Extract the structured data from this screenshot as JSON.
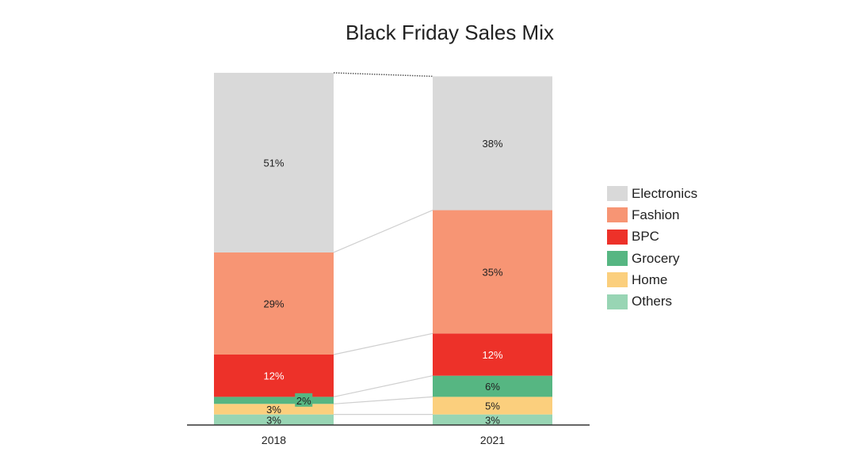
{
  "chart_data": {
    "type": "bar",
    "stacked": true,
    "normalized": true,
    "title": "Black Friday Sales Mix",
    "categories": [
      "2018",
      "2021"
    ],
    "series": [
      {
        "name": "Others",
        "values": [
          3,
          3
        ],
        "color": "#98d5b4"
      },
      {
        "name": "Home",
        "values": [
          3,
          5
        ],
        "color": "#fbcf7d"
      },
      {
        "name": "Grocery",
        "values": [
          2,
          6
        ],
        "color": "#56b682"
      },
      {
        "name": "BPC",
        "values": [
          12,
          12
        ],
        "color": "#ed3129"
      },
      {
        "name": "Fashion",
        "values": [
          29,
          35
        ],
        "color": "#f79574"
      },
      {
        "name": "Electronics",
        "values": [
          51,
          38
        ],
        "color": "#d9d9d9"
      }
    ],
    "data_labels": [
      [
        "3%",
        "3%"
      ],
      [
        "3%",
        "5%"
      ],
      [
        "2%",
        "6%"
      ],
      [
        "12%",
        "12%"
      ],
      [
        "29%",
        "35%"
      ],
      [
        "51%",
        "38%"
      ]
    ],
    "label_colors": [
      "#222222",
      "#222222",
      "#222222",
      "#ffffff",
      "#222222",
      "#222222"
    ],
    "legend_order": [
      "Electronics",
      "Fashion",
      "BPC",
      "Grocery",
      "Home",
      "Others"
    ],
    "legend_position": "right",
    "ylim": [
      0,
      100
    ],
    "grid": false
  }
}
